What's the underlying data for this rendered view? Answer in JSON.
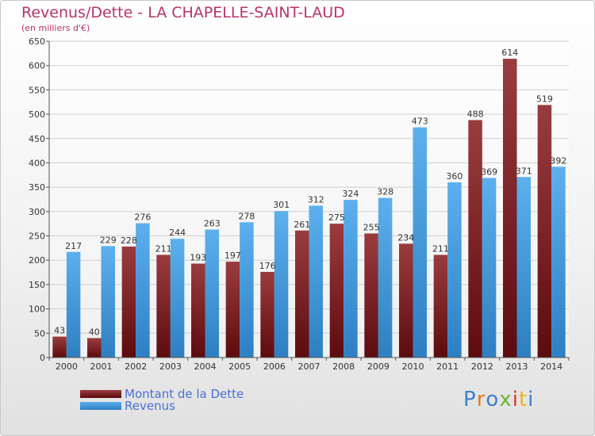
{
  "title": "Revenus/Dette - LA CHAPELLE-SAINT-LAUD",
  "subtitle": "(en milliers d'€)",
  "colors": {
    "title": "#b8336b",
    "series1_dark": "#5c0b0e",
    "series1_light": "#9a3c3f",
    "series2_dark": "#2d7fc2",
    "series2_light": "#5cb0ee"
  },
  "legend": {
    "items": [
      {
        "label": "Montant de la Dette"
      },
      {
        "label": "Revenus"
      }
    ]
  },
  "logo": {
    "letters": [
      "P",
      "r",
      "o",
      "x",
      "i",
      "t",
      "i"
    ]
  },
  "chart_data": {
    "type": "bar",
    "title": "Revenus/Dette - LA CHAPELLE-SAINT-LAUD",
    "subtitle": "(en milliers d'€)",
    "categories": [
      "2000",
      "2001",
      "2002",
      "2003",
      "2004",
      "2005",
      "2006",
      "2007",
      "2008",
      "2009",
      "2010",
      "2011",
      "2012",
      "2013",
      "2014"
    ],
    "series": [
      {
        "name": "Montant de la Dette",
        "values": [
          43,
          40,
          228,
          211,
          193,
          197,
          176,
          261,
          275,
          255,
          234,
          211,
          488,
          614,
          519
        ]
      },
      {
        "name": "Revenus",
        "values": [
          217,
          229,
          276,
          244,
          263,
          278,
          301,
          312,
          324,
          328,
          473,
          360,
          369,
          371,
          392
        ]
      }
    ],
    "yticks": [
      0,
      50,
      100,
      150,
      200,
      250,
      300,
      350,
      400,
      450,
      500,
      550,
      600,
      650
    ],
    "ylim": [
      0,
      650
    ],
    "grid": true,
    "legend_position": "bottom-left"
  }
}
